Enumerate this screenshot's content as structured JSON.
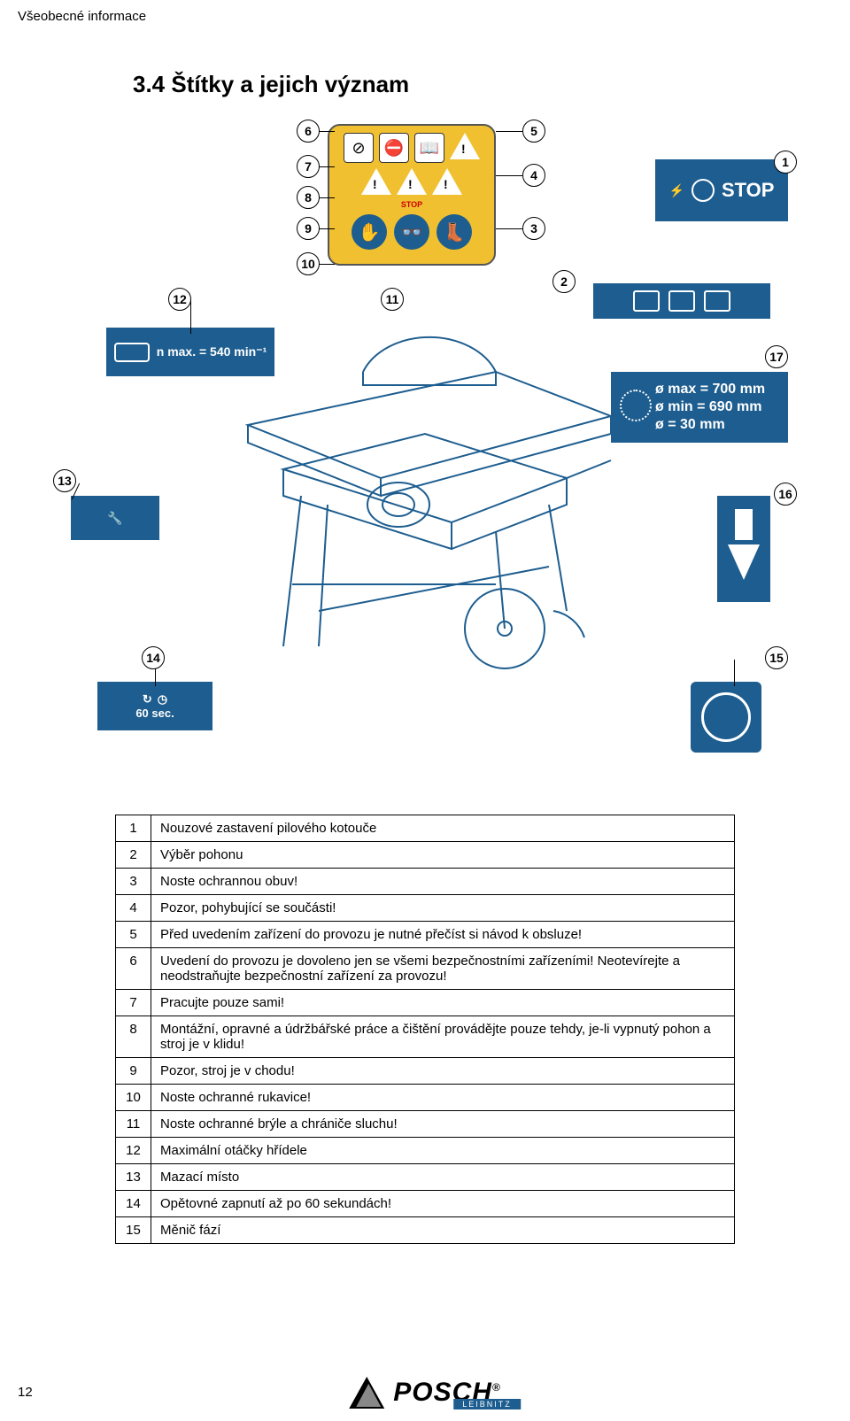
{
  "page_header": "Všeobecné informace",
  "section_title": "3.4 Štítky a jejich význam",
  "page_number": "12",
  "footer": {
    "brand": "POSCH",
    "sub": "LEIBNITZ",
    "reg": "®"
  },
  "labels": {
    "stop": "STOP",
    "rpm": "n max. = 540 min⁻¹",
    "dmax": "ø max = 700 mm",
    "dmin": "ø min = 690 mm",
    "dbore": "ø = 30 mm",
    "timer": "60 sec."
  },
  "legend": [
    {
      "n": "1",
      "t": "Nouzové zastavení pilového kotouče"
    },
    {
      "n": "2",
      "t": "Výběr pohonu"
    },
    {
      "n": "3",
      "t": "Noste ochrannou obuv!"
    },
    {
      "n": "4",
      "t": "Pozor, pohybující se součásti!"
    },
    {
      "n": "5",
      "t": "Před uvedením zařízení do provozu je nutné přečíst si návod k obsluze!"
    },
    {
      "n": "6",
      "t": "Uvedení do provozu je dovoleno jen se všemi bezpečnostními zařízeními! Neotevírejte a neodstraňujte bezpečnostní zařízení za provozu!"
    },
    {
      "n": "7",
      "t": "Pracujte pouze sami!"
    },
    {
      "n": "8",
      "t": "Montážní, opravné a údržbářské práce a čištění provádějte pouze tehdy, je-li vypnutý pohon a stroj je v klidu!"
    },
    {
      "n": "9",
      "t": "Pozor, stroj je v chodu!"
    },
    {
      "n": "10",
      "t": "Noste ochranné rukavice!"
    },
    {
      "n": "11",
      "t": "Noste ochranné brýle a chrániče sluchu!"
    },
    {
      "n": "12",
      "t": "Maximální otáčky hřídele"
    },
    {
      "n": "13",
      "t": "Mazací místo"
    },
    {
      "n": "14",
      "t": "Opětovné zapnutí až po 60 sekundách!"
    },
    {
      "n": "15",
      "t": "Měnič fází"
    }
  ],
  "callouts": [
    "1",
    "2",
    "3",
    "4",
    "5",
    "6",
    "7",
    "8",
    "9",
    "10",
    "11",
    "12",
    "13",
    "14",
    "15",
    "16",
    "17"
  ],
  "colors": {
    "blue": "#1d5d8f",
    "yellow": "#f0c030",
    "black": "#000000",
    "white": "#ffffff"
  }
}
